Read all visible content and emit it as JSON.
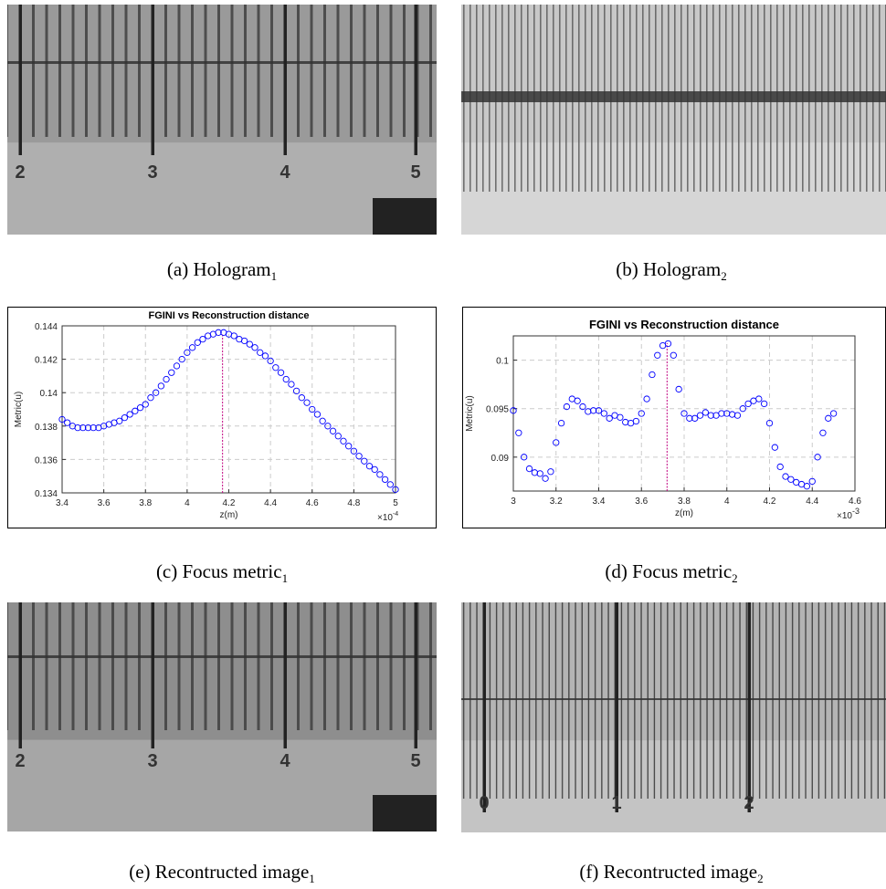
{
  "captions": [
    {
      "text": "(a) Hologram",
      "sub": "1"
    },
    {
      "text": "(b) Hologram",
      "sub": "2"
    },
    {
      "text": "(c) Focus metric",
      "sub": "1"
    },
    {
      "text": "(d) Focus metric",
      "sub": "2"
    },
    {
      "text": "(e) Recontructed image",
      "sub": "1"
    },
    {
      "text": "(f) Recontructed image",
      "sub": "2"
    }
  ],
  "image_labels": {
    "hologram_1": [
      "2",
      "3",
      "4",
      "5"
    ],
    "reconstructed_1": [
      "2",
      "3",
      "4",
      "5"
    ],
    "reconstructed_2": [
      "0",
      "1",
      "2"
    ]
  },
  "chart_data": [
    {
      "type": "scatter",
      "title": "FGINI vs Reconstruction distance",
      "x_label": "z(m)",
      "y_label": "Metric(u)",
      "x_multiplier": {
        "base": "×10",
        "exp": "-4"
      },
      "color": "#0000ff",
      "grid": true,
      "xlim": [
        3.4,
        5
      ],
      "xticks": [
        3.4,
        3.6,
        3.8,
        4,
        4.2,
        4.4,
        4.6,
        4.8,
        5
      ],
      "ylim": [
        0.134,
        0.144
      ],
      "yticks": [
        0.134,
        0.136,
        0.138,
        0.14,
        0.142,
        0.144
      ],
      "focus_line": {
        "x": 4.17,
        "color": "#c0007f"
      },
      "x": [
        3.4,
        3.425,
        3.45,
        3.475,
        3.5,
        3.525,
        3.55,
        3.575,
        3.6,
        3.625,
        3.65,
        3.675,
        3.7,
        3.725,
        3.75,
        3.775,
        3.8,
        3.825,
        3.85,
        3.875,
        3.9,
        3.925,
        3.95,
        3.975,
        4.0,
        4.025,
        4.05,
        4.075,
        4.1,
        4.125,
        4.15,
        4.175,
        4.2,
        4.225,
        4.25,
        4.275,
        4.3,
        4.325,
        4.35,
        4.375,
        4.4,
        4.425,
        4.45,
        4.475,
        4.5,
        4.525,
        4.55,
        4.575,
        4.6,
        4.625,
        4.65,
        4.675,
        4.7,
        4.725,
        4.75,
        4.775,
        4.8,
        4.825,
        4.85,
        4.875,
        4.9,
        4.925,
        4.95,
        4.975,
        5.0
      ],
      "values": [
        0.1384,
        0.1382,
        0.138,
        0.1379,
        0.1379,
        0.1379,
        0.1379,
        0.1379,
        0.138,
        0.1381,
        0.1382,
        0.1383,
        0.1385,
        0.1387,
        0.1389,
        0.1391,
        0.1393,
        0.1397,
        0.14,
        0.1404,
        0.1408,
        0.1412,
        0.1416,
        0.142,
        0.1424,
        0.1427,
        0.143,
        0.1432,
        0.1434,
        0.1435,
        0.1436,
        0.1436,
        0.1435,
        0.1434,
        0.1432,
        0.1431,
        0.1429,
        0.1427,
        0.1424,
        0.1422,
        0.1419,
        0.1415,
        0.1412,
        0.1408,
        0.1405,
        0.1401,
        0.1397,
        0.1394,
        0.139,
        0.1387,
        0.1383,
        0.138,
        0.1377,
        0.1374,
        0.1371,
        0.1368,
        0.1365,
        0.1362,
        0.1359,
        0.1356,
        0.1354,
        0.1351,
        0.1348,
        0.1345,
        0.1342
      ]
    },
    {
      "type": "scatter",
      "title": "FGINI vs Reconstruction distance",
      "x_label": "z(m)",
      "y_label": "Metric(u)",
      "x_multiplier": {
        "base": "×10",
        "exp": "-3"
      },
      "color": "#0000ff",
      "grid": true,
      "xlim": [
        3,
        4.6
      ],
      "xticks": [
        3,
        3.2,
        3.4,
        3.6,
        3.8,
        4,
        4.2,
        4.4,
        4.6
      ],
      "ylim": [
        0.0865,
        0.1025
      ],
      "yticks": [
        0.09,
        0.095,
        0.1
      ],
      "focus_line": {
        "x": 3.72,
        "color": "#c0007f"
      },
      "x": [
        3.0,
        3.025,
        3.05,
        3.075,
        3.1,
        3.125,
        3.15,
        3.175,
        3.2,
        3.225,
        3.25,
        3.275,
        3.3,
        3.325,
        3.35,
        3.375,
        3.4,
        3.425,
        3.45,
        3.475,
        3.5,
        3.525,
        3.55,
        3.575,
        3.6,
        3.625,
        3.65,
        3.675,
        3.7,
        3.725,
        3.75,
        3.775,
        3.8,
        3.825,
        3.85,
        3.875,
        3.9,
        3.925,
        3.95,
        3.975,
        4.0,
        4.025,
        4.05,
        4.075,
        4.1,
        4.125,
        4.15,
        4.175,
        4.2,
        4.225,
        4.25,
        4.275,
        4.3,
        4.325,
        4.35,
        4.375,
        4.4,
        4.425,
        4.45,
        4.475,
        4.5
      ],
      "values": [
        0.0948,
        0.0925,
        0.09,
        0.0888,
        0.0884,
        0.0883,
        0.0878,
        0.0885,
        0.0915,
        0.0935,
        0.0952,
        0.096,
        0.0958,
        0.0952,
        0.0947,
        0.0948,
        0.0948,
        0.0945,
        0.094,
        0.0943,
        0.0941,
        0.0936,
        0.0935,
        0.0937,
        0.0945,
        0.096,
        0.0985,
        0.1005,
        0.1015,
        0.1017,
        0.1005,
        0.097,
        0.0945,
        0.094,
        0.094,
        0.0943,
        0.0946,
        0.0943,
        0.0943,
        0.0945,
        0.0945,
        0.0944,
        0.0943,
        0.095,
        0.0955,
        0.0958,
        0.096,
        0.0955,
        0.0935,
        0.091,
        0.089,
        0.088,
        0.0877,
        0.0874,
        0.0872,
        0.087,
        0.0875,
        0.09,
        0.0925,
        0.094,
        0.0945
      ]
    }
  ]
}
